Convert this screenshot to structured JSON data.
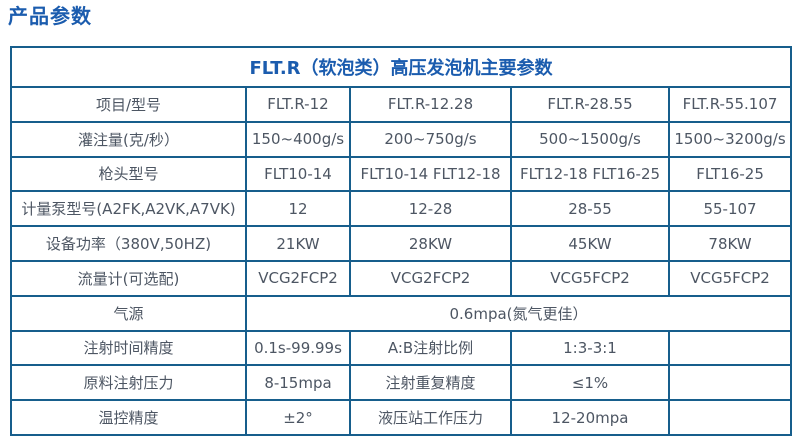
{
  "page_title": "产品参数",
  "colors": {
    "accent_blue": "#1b5cae",
    "border_blue": "#175e8c",
    "body_text": "#4d5663",
    "background": "#ffffff"
  },
  "table": {
    "title": "FLT.R（软泡类）高压发泡机主要参数",
    "rows": [
      {
        "cells": [
          {
            "text": "项目/型号"
          },
          {
            "text": "FLT.R-12"
          },
          {
            "text": "FLT.R-12.28"
          },
          {
            "text": "FLT.R-28.55"
          },
          {
            "text": "FLT.R-55.107"
          }
        ]
      },
      {
        "cells": [
          {
            "text": "灌注量(克/秒）"
          },
          {
            "text": "150~400g/s"
          },
          {
            "text": "200~750g/s"
          },
          {
            "text": "500~1500g/s"
          },
          {
            "text": "1500~3200g/s"
          }
        ]
      },
      {
        "cells": [
          {
            "text": "枪头型号"
          },
          {
            "text": "FLT10-14"
          },
          {
            "text": "FLT10-14 FLT12-18"
          },
          {
            "text": "FLT12-18 FLT16-25"
          },
          {
            "text": "FLT16-25"
          }
        ]
      },
      {
        "cells": [
          {
            "text": "计量泵型号(A2FK,A2VK,A7VK)"
          },
          {
            "text": "12"
          },
          {
            "text": "12-28"
          },
          {
            "text": "28-55"
          },
          {
            "text": "55-107"
          }
        ]
      },
      {
        "cells": [
          {
            "text": "设备功率（380V,50HZ)"
          },
          {
            "text": "21KW"
          },
          {
            "text": "28KW"
          },
          {
            "text": "45KW"
          },
          {
            "text": "78KW"
          }
        ]
      },
      {
        "cells": [
          {
            "text": "流量计(可选配)"
          },
          {
            "text": "VCG2FCP2"
          },
          {
            "text": "VCG2FCP2"
          },
          {
            "text": "VCG5FCP2"
          },
          {
            "text": "VCG5FCP2"
          }
        ]
      },
      {
        "cells": [
          {
            "text": "气源"
          },
          {
            "text": "0.6mpa(氮气更佳）",
            "colspan": 4
          }
        ]
      },
      {
        "cells": [
          {
            "text": "注射时间精度"
          },
          {
            "text": "0.1s-99.99s"
          },
          {
            "text": "A:B注射比例"
          },
          {
            "text": "1:3-3:1"
          },
          {
            "text": ""
          }
        ]
      },
      {
        "cells": [
          {
            "text": "原料注射压力"
          },
          {
            "text": "8-15mpa"
          },
          {
            "text": "注射重复精度"
          },
          {
            "text": "≤1%"
          },
          {
            "text": ""
          }
        ]
      },
      {
        "cells": [
          {
            "text": "温控精度"
          },
          {
            "text": "±2°"
          },
          {
            "text": "液压站工作压力"
          },
          {
            "text": "12-20mpa"
          },
          {
            "text": ""
          }
        ]
      }
    ]
  }
}
